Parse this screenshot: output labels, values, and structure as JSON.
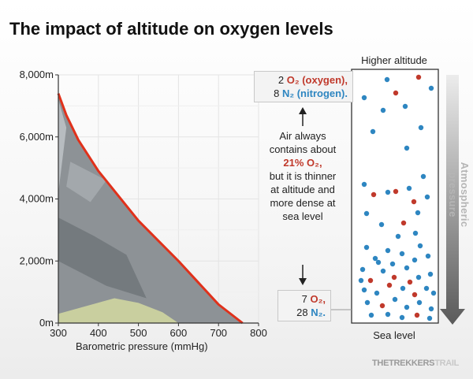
{
  "title": "The impact of altitude on oxygen levels",
  "chart_data": {
    "type": "line",
    "xlabel": "Barometric pressure (mmHg)",
    "ylabel": "",
    "x_ticks": [
      "300",
      "400",
      "500",
      "600",
      "700",
      "800"
    ],
    "y_ticks": [
      "0m",
      "2,000m",
      "4,000m",
      "6,000m",
      "8,000m"
    ],
    "xlim": [
      300,
      800
    ],
    "ylim": [
      0,
      8000
    ],
    "grid": true,
    "line_color": "#e0311b",
    "series": [
      {
        "x": [
          300,
          320,
          350,
          400,
          450,
          500,
          550,
          600,
          650,
          700,
          760
        ],
        "y": [
          7400,
          6700,
          5900,
          4900,
          4100,
          3300,
          2650,
          2000,
          1300,
          600,
          0
        ]
      }
    ]
  },
  "annotations": {
    "higher_altitude": "Higher altitude",
    "sea_level": "Sea level",
    "atmospheric_pressure": "Atmospheric pressure",
    "top_box": {
      "o2_count": "2",
      "o2_label": "O₂ (oxygen),",
      "n2_count": "8",
      "n2_label": "N₂ (nitrogen)."
    },
    "bottom_box": {
      "o2_count": "7",
      "o2_label": "O₂,",
      "n2_count": "28",
      "n2_label": "N₂."
    },
    "explainer_before": "Air always contains about",
    "explainer_pct": "21% O₂,",
    "explainer_after": "but it is thinner at altitude and more dense at sea level"
  },
  "colors": {
    "oxygen": "#c0392b",
    "nitrogen": "#2e86c1",
    "curve": "#e0311b",
    "mountain": "#8a8f93"
  },
  "brand": {
    "part1": "THETREKKERS",
    "part2": "TRAIL"
  }
}
